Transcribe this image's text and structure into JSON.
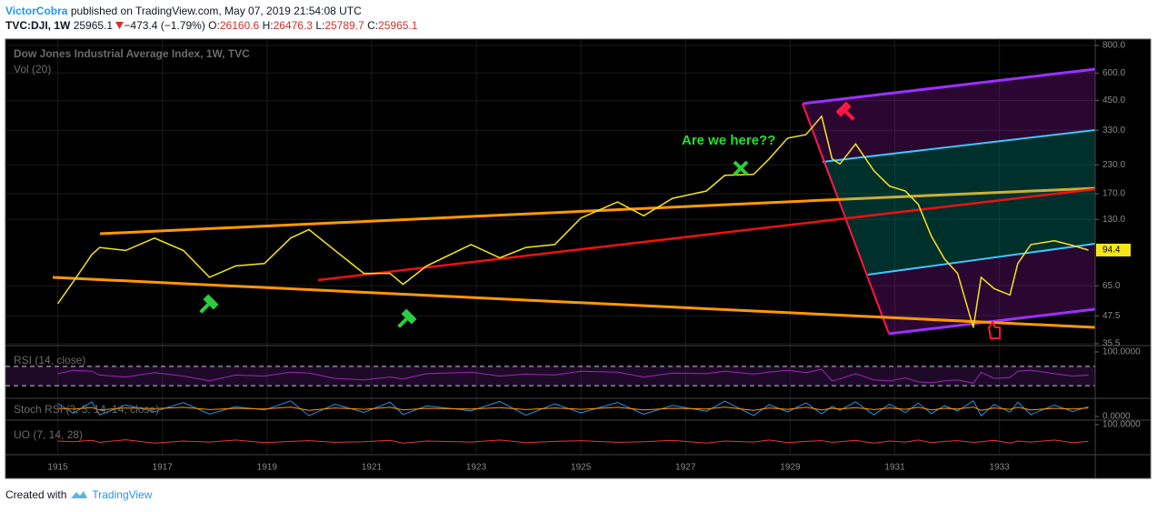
{
  "header": {
    "author": "VictorCobra",
    "published": "published on TradingView.com, May 07, 2019 21:54:08 UTC",
    "symbol": "TVC:DJI, 1W",
    "last": "25965.1",
    "change": "−473.4 (−1.79%)",
    "o_label": "O:",
    "o": "26160.6",
    "h_label": "H:",
    "h": "26476.3",
    "l_label": "L:",
    "l": "25789.7",
    "c_label": "C:",
    "c": "25965.1"
  },
  "footer": {
    "text": "Created with",
    "brand": "TradingView"
  },
  "chart_data": {
    "type": "line",
    "title": "Dow Jones Industrial Average Index, 1W, TVC",
    "subtitle": "Vol (20)",
    "annotation": "Are we here??",
    "x": [
      1915.0,
      1915.3,
      1915.65,
      1915.8,
      1916.3,
      1916.85,
      1917.4,
      1917.9,
      1918.4,
      1918.95,
      1919.45,
      1919.8,
      1920.3,
      1920.85,
      1921.35,
      1921.6,
      1922.05,
      1922.9,
      1923.45,
      1923.95,
      1924.5,
      1925.0,
      1925.7,
      1926.2,
      1926.75,
      1927.4,
      1927.75,
      1928.3,
      1928.6,
      1928.95,
      1929.3,
      1929.6,
      1929.8,
      1929.95,
      1930.25,
      1930.6,
      1930.9,
      1931.2,
      1931.45,
      1931.7,
      1931.95,
      1932.2,
      1932.5,
      1932.65,
      1932.9,
      1933.2,
      1933.35,
      1933.6,
      1934.05,
      1934.4,
      1934.7
    ],
    "xlim": [
      1914,
      1934.83
    ],
    "xticks": [
      1915,
      1917,
      1919,
      1921,
      1923,
      1925,
      1927,
      1929,
      1931,
      1933
    ],
    "ylim": [
      34.8,
      855
    ],
    "log_scale": true,
    "grid": true,
    "yticks": [
      {
        "value": 800,
        "label": "800.0"
      },
      {
        "value": 600,
        "label": "600.0"
      },
      {
        "value": 450,
        "label": "450.0"
      },
      {
        "value": 330,
        "label": "330.0"
      },
      {
        "value": 230,
        "label": "230.0"
      },
      {
        "value": 170,
        "label": "170.0"
      },
      {
        "value": 130,
        "label": "130.0"
      },
      {
        "value": 65,
        "label": "65.0"
      },
      {
        "value": 47.5,
        "label": "47.5"
      },
      {
        "value": 35.5,
        "label": "35.5"
      }
    ],
    "series": [
      {
        "color": "#f5e61a",
        "values": [
          54,
          68,
          90,
          97,
          94,
          107,
          94,
          71,
          80,
          82,
          107,
          117,
          94,
          74,
          74,
          66,
          80,
          100,
          87,
          97,
          100,
          132,
          156,
          135,
          162,
          175,
          206,
          208,
          245,
          304,
          315,
          382,
          245,
          232,
          286,
          216,
          184,
          175,
          152,
          109,
          86,
          74,
          42,
          71,
          63,
          59,
          82,
          100,
          104,
          99,
          94.4
        ]
      }
    ],
    "panes": [
      {
        "title": "RSI (14, close)",
        "ylim": [
          0,
          100
        ],
        "yticks": [
          {
            "value": 100,
            "label": "100.0000"
          }
        ],
        "levels": [
          70,
          30
        ],
        "series": [
          {
            "color": "#9c27b0",
            "values": [
              55,
              62,
              60,
              52,
              48,
              57,
              50,
              40,
              52,
              50,
              58,
              56,
              45,
              42,
              48,
              44,
              55,
              58,
              50,
              54,
              52,
              60,
              58,
              48,
              56,
              55,
              60,
              54,
              58,
              62,
              57,
              64,
              40,
              44,
              55,
              42,
              40,
              46,
              38,
              36,
              40,
              42,
              35,
              58,
              45,
              47,
              60,
              62,
              55,
              50,
              52
            ]
          }
        ]
      },
      {
        "title": "Stoch RSI (3, 3, 14, 14, close)",
        "ylim": [
          0,
          100
        ],
        "yticks": [
          {
            "value": 0,
            "label": "0.0000"
          }
        ],
        "series": [
          {
            "color": "#2196f3",
            "values": [
              80,
              20,
              90,
              10,
              70,
              30,
              85,
              15,
              60,
              40,
              95,
              5,
              75,
              25,
              88,
              12,
              65,
              35,
              92,
              8,
              78,
              22,
              86,
              14,
              68,
              32,
              94,
              6,
              72,
              28,
              84,
              16,
              62,
              38,
              90,
              10,
              76,
              24,
              82,
              18,
              66,
              34,
              96,
              4,
              74,
              26,
              88,
              12,
              70,
              30,
              60
            ]
          },
          {
            "color": "#ff9800",
            "values": [
              50,
              45,
              55,
              40,
              52,
              48,
              56,
              42,
              50,
              46,
              58,
              38,
              52,
              44,
              56,
              40,
              50,
              46,
              54,
              42,
              52,
              44,
              56,
              40,
              50,
              46,
              58,
              38,
              52,
              44,
              56,
              40,
              50,
              46,
              54,
              42,
              52,
              44,
              56,
              40,
              50,
              46,
              58,
              38,
              52,
              44,
              56,
              40,
              50,
              46,
              52
            ]
          }
        ]
      },
      {
        "title": "UO (7, 14, 28)",
        "ylim": [
          0,
          100
        ],
        "yticks": [
          {
            "value": 100,
            "label": "100.0000"
          }
        ],
        "series": [
          {
            "color": "#e53935",
            "values": [
              50,
              48,
              52,
              46,
              54,
              44,
              50,
              47,
              53,
              45,
              49,
              51,
              46,
              48,
              52,
              44,
              50,
              47,
              53,
              45,
              49,
              51,
              46,
              48,
              52,
              44,
              50,
              47,
              53,
              45,
              49,
              51,
              46,
              48,
              52,
              44,
              50,
              47,
              53,
              45,
              49,
              51,
              46,
              48,
              52,
              44,
              50,
              47,
              53,
              45,
              49
            ]
          }
        ]
      }
    ]
  }
}
